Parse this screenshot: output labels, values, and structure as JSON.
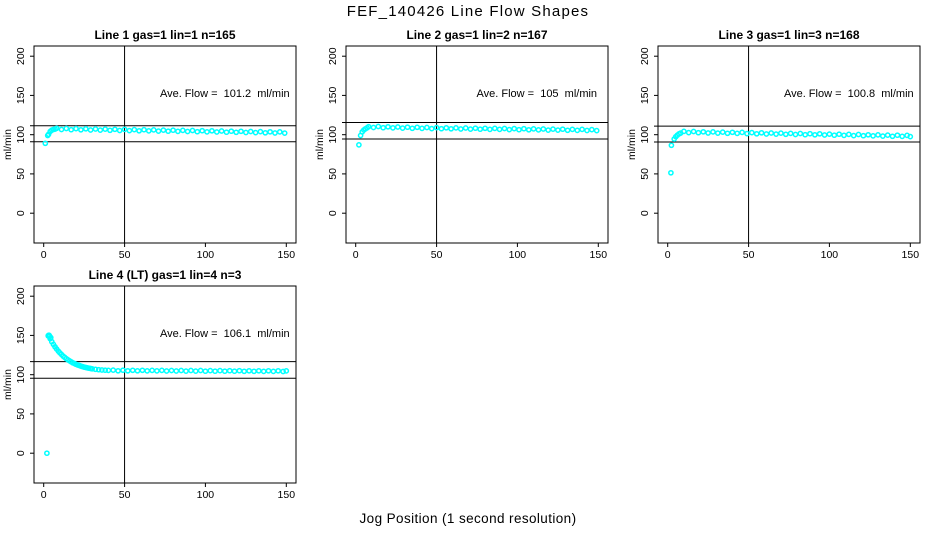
{
  "title": "FEF_140426  Line Flow Shapes",
  "xlabel": "Jog Position (1 second resolution)",
  "point_color": "#00FFFF",
  "axis_color": "#000000",
  "background_color": "#FFFFFF",
  "chart_data": [
    {
      "type": "scatter",
      "title": "Line 1 gas=1 lin=1 n=165",
      "gas": 1,
      "lin": 1,
      "n": 165,
      "ave_flow_ml_min": 101.2,
      "annotation": {
        "text": "Ave. Flow =  101.2  ml/min",
        "x": 112,
        "y": 148
      },
      "ylabel": "ml/min",
      "x_range": [
        -6,
        156
      ],
      "y_range": [
        -38,
        213
      ],
      "x_ticks": [
        0,
        50,
        100,
        150
      ],
      "y_ticks": [
        0,
        50,
        100,
        150,
        200
      ],
      "vline_x": 50,
      "hlines_y": [
        111.3,
        91.1
      ],
      "outliers": [
        [
          1,
          89
        ]
      ],
      "points": [
        [
          2.5,
          99
        ],
        [
          3,
          100.5
        ],
        [
          4,
          104
        ],
        [
          5,
          105.8
        ],
        [
          6,
          106.6
        ],
        [
          7,
          107.1
        ],
        [
          8,
          108.1
        ],
        [
          11,
          106.6
        ],
        [
          14,
          107.9
        ],
        [
          17,
          106.4
        ],
        [
          20,
          107.7
        ],
        [
          23,
          106.2
        ],
        [
          26,
          107.5
        ],
        [
          29,
          106
        ],
        [
          32,
          107.3
        ],
        [
          35,
          105.8
        ],
        [
          38,
          107.1
        ],
        [
          41,
          105.6
        ],
        [
          44,
          106.9
        ],
        [
          47,
          105.4
        ],
        [
          50,
          106.7
        ],
        [
          53,
          105.2
        ],
        [
          56,
          106.5
        ],
        [
          59,
          105
        ],
        [
          62,
          106.3
        ],
        [
          65,
          104.8
        ],
        [
          68,
          106.1
        ],
        [
          71,
          104.6
        ],
        [
          74,
          105.9
        ],
        [
          77,
          104.4
        ],
        [
          80,
          105.7
        ],
        [
          83,
          104.2
        ],
        [
          86,
          105.5
        ],
        [
          89,
          104
        ],
        [
          92,
          105.3
        ],
        [
          95,
          103.8
        ],
        [
          98,
          105.1
        ],
        [
          101,
          103.6
        ],
        [
          104,
          104.9
        ],
        [
          107,
          103.4
        ],
        [
          110,
          104.7
        ],
        [
          113,
          103.2
        ],
        [
          116,
          104.5
        ],
        [
          119,
          103
        ],
        [
          122,
          104.3
        ],
        [
          125,
          102.8
        ],
        [
          128,
          104.1
        ],
        [
          131,
          102.6
        ],
        [
          134,
          103.9
        ],
        [
          137,
          102.4
        ],
        [
          140,
          103.7
        ],
        [
          143,
          102.2
        ],
        [
          146,
          103.5
        ],
        [
          149,
          102
        ]
      ]
    },
    {
      "type": "scatter",
      "title": "Line 2 gas=1 lin=2 n=167",
      "gas": 1,
      "lin": 2,
      "n": 167,
      "ave_flow_ml_min": 105,
      "annotation": {
        "text": "Ave. Flow =  105  ml/min",
        "x": 112,
        "y": 148
      },
      "ylabel": "ml/min",
      "x_range": [
        -6,
        156
      ],
      "y_range": [
        -38,
        213
      ],
      "x_ticks": [
        0,
        50,
        100,
        150
      ],
      "y_ticks": [
        0,
        50,
        100,
        150,
        200
      ],
      "vline_x": 50,
      "hlines_y": [
        115.5,
        94.5
      ],
      "outliers": [
        [
          2,
          87
        ]
      ],
      "points": [
        [
          3,
          99
        ],
        [
          4,
          103.5
        ],
        [
          5,
          106
        ],
        [
          6,
          107.5
        ],
        [
          7,
          108.6
        ],
        [
          8,
          110.2
        ],
        [
          11,
          109.1
        ],
        [
          14,
          110.4
        ],
        [
          17,
          108.9
        ],
        [
          20,
          110.1
        ],
        [
          23,
          108.6
        ],
        [
          26,
          109.8
        ],
        [
          29,
          108.4
        ],
        [
          32,
          109.6
        ],
        [
          35,
          108.2
        ],
        [
          38,
          109.4
        ],
        [
          41,
          108
        ],
        [
          44,
          109.2
        ],
        [
          47,
          107.8
        ],
        [
          50,
          109
        ],
        [
          53,
          107.6
        ],
        [
          56,
          108.8
        ],
        [
          59,
          107.5
        ],
        [
          62,
          108.7
        ],
        [
          65,
          107.3
        ],
        [
          68,
          108.5
        ],
        [
          71,
          107.1
        ],
        [
          74,
          108.3
        ],
        [
          77,
          107
        ],
        [
          80,
          108.2
        ],
        [
          83,
          106.8
        ],
        [
          86,
          108
        ],
        [
          89,
          106.7
        ],
        [
          92,
          107.9
        ],
        [
          95,
          106.5
        ],
        [
          98,
          107.7
        ],
        [
          101,
          106.4
        ],
        [
          104,
          107.6
        ],
        [
          107,
          106.2
        ],
        [
          110,
          107.4
        ],
        [
          113,
          106.1
        ],
        [
          116,
          107.3
        ],
        [
          119,
          105.9
        ],
        [
          122,
          107.1
        ],
        [
          125,
          105.8
        ],
        [
          128,
          107
        ],
        [
          131,
          105.6
        ],
        [
          134,
          106.8
        ],
        [
          137,
          105.5
        ],
        [
          140,
          106.7
        ],
        [
          143,
          105.3
        ],
        [
          146,
          106.5
        ],
        [
          149,
          105.2
        ]
      ]
    },
    {
      "type": "scatter",
      "title": "Line 3 gas=1 lin=3 n=168",
      "gas": 1,
      "lin": 3,
      "n": 168,
      "ave_flow_ml_min": 100.8,
      "annotation": {
        "text": "Ave. Flow =  100.8  ml/min",
        "x": 112,
        "y": 148
      },
      "ylabel": "ml/min",
      "x_range": [
        -6,
        156
      ],
      "y_range": [
        -38,
        213
      ],
      "x_ticks": [
        0,
        50,
        100,
        150
      ],
      "y_ticks": [
        0,
        50,
        100,
        150,
        200
      ],
      "vline_x": 50,
      "hlines_y": [
        110.9,
        90.7
      ],
      "outliers": [
        [
          2,
          51.5
        ],
        [
          2.3,
          86.5
        ]
      ],
      "points": [
        [
          4,
          94.5
        ],
        [
          5,
          97.5
        ],
        [
          6,
          99.5
        ],
        [
          7,
          101
        ],
        [
          8,
          102
        ],
        [
          10,
          104.2
        ],
        [
          13,
          102.7
        ],
        [
          16,
          104
        ],
        [
          19,
          102.5
        ],
        [
          22,
          103.7
        ],
        [
          25,
          102.2
        ],
        [
          28,
          103.5
        ],
        [
          31,
          102
        ],
        [
          34,
          103.3
        ],
        [
          37,
          101.8
        ],
        [
          40,
          103.1
        ],
        [
          43,
          101.6
        ],
        [
          46,
          102.9
        ],
        [
          49,
          101.4
        ],
        [
          52,
          102.6
        ],
        [
          55,
          101.1
        ],
        [
          58,
          102.4
        ],
        [
          61,
          100.9
        ],
        [
          64,
          102.2
        ],
        [
          67,
          100.7
        ],
        [
          70,
          102
        ],
        [
          73,
          100.5
        ],
        [
          76,
          101.7
        ],
        [
          79,
          100.2
        ],
        [
          82,
          101.5
        ],
        [
          85,
          100
        ],
        [
          88,
          101.3
        ],
        [
          91,
          99.8
        ],
        [
          94,
          101.1
        ],
        [
          97,
          99.6
        ],
        [
          100,
          100.8
        ],
        [
          103,
          99.3
        ],
        [
          106,
          100.6
        ],
        [
          109,
          99.1
        ],
        [
          112,
          100.4
        ],
        [
          115,
          98.9
        ],
        [
          118,
          100.2
        ],
        [
          121,
          98.7
        ],
        [
          124,
          99.9
        ],
        [
          127,
          98.4
        ],
        [
          130,
          99.7
        ],
        [
          133,
          98.2
        ],
        [
          136,
          99.5
        ],
        [
          139,
          98
        ],
        [
          142,
          99.3
        ],
        [
          145,
          97.8
        ],
        [
          148,
          99.1
        ],
        [
          150,
          97.6
        ]
      ]
    },
    {
      "type": "scatter",
      "title": "Line 4 (LT) gas=1 lin=4 n=3",
      "gas": 1,
      "lin": 4,
      "n": 3,
      "ave_flow_ml_min": 106.1,
      "annotation": {
        "text": "Ave. Flow =  106.1  ml/min",
        "x": 112,
        "y": 148
      },
      "ylabel": "ml/min",
      "x_range": [
        -6,
        156
      ],
      "y_range": [
        -38,
        213
      ],
      "x_ticks": [
        0,
        50,
        100,
        150
      ],
      "y_ticks": [
        0,
        50,
        100,
        150,
        200
      ],
      "vline_x": 50,
      "hlines_y": [
        116.7,
        95.5
      ],
      "outliers": [
        [
          2,
          0
        ]
      ],
      "points": [
        [
          2.8,
          149.5
        ],
        [
          3,
          150
        ],
        [
          3.3,
          150.3
        ],
        [
          3.7,
          148.9
        ],
        [
          4,
          145.8
        ],
        [
          4.4,
          147.2
        ],
        [
          5,
          142
        ],
        [
          6,
          138.6
        ],
        [
          7,
          135.5
        ],
        [
          8,
          132.7
        ],
        [
          9,
          130.1
        ],
        [
          10,
          127.8
        ],
        [
          11,
          125.7
        ],
        [
          12,
          123.7
        ],
        [
          13,
          122
        ],
        [
          14,
          120.4
        ],
        [
          15,
          118.9
        ],
        [
          16,
          117.6
        ],
        [
          17,
          116.4
        ],
        [
          18,
          115.2
        ],
        [
          19,
          114.2
        ],
        [
          20,
          113.3
        ],
        [
          21,
          112.4
        ],
        [
          22,
          111.7
        ],
        [
          23,
          111
        ],
        [
          24,
          110.3
        ],
        [
          25,
          109.7
        ],
        [
          26,
          109.2
        ],
        [
          27,
          108.7
        ],
        [
          28,
          108.3
        ],
        [
          29,
          107.9
        ],
        [
          30,
          107.5
        ],
        [
          32,
          106.9
        ],
        [
          34,
          106.4
        ],
        [
          36,
          106
        ],
        [
          38,
          105.7
        ],
        [
          40,
          105.5
        ],
        [
          43,
          105.8
        ],
        [
          46,
          105
        ],
        [
          49,
          105.7
        ],
        [
          52,
          104.9
        ],
        [
          55,
          105.6
        ],
        [
          58,
          104.9
        ],
        [
          61,
          105.6
        ],
        [
          64,
          104.8
        ],
        [
          67,
          105.5
        ],
        [
          70,
          104.8
        ],
        [
          73,
          105.5
        ],
        [
          76,
          104.7
        ],
        [
          79,
          105.4
        ],
        [
          82,
          104.7
        ],
        [
          85,
          105.4
        ],
        [
          88,
          104.6
        ],
        [
          91,
          105.3
        ],
        [
          94,
          104.6
        ],
        [
          97,
          105.3
        ],
        [
          100,
          104.5
        ],
        [
          103,
          105.2
        ],
        [
          106,
          104.5
        ],
        [
          109,
          105.2
        ],
        [
          112,
          104.4
        ],
        [
          115,
          105.1
        ],
        [
          118,
          104.4
        ],
        [
          121,
          105.1
        ],
        [
          124,
          104.3
        ],
        [
          127,
          105
        ],
        [
          130,
          104.3
        ],
        [
          133,
          105
        ],
        [
          136,
          104.2
        ],
        [
          139,
          104.9
        ],
        [
          142,
          104.2
        ],
        [
          145,
          104.9
        ],
        [
          148,
          104.1
        ],
        [
          150,
          104.8
        ]
      ]
    }
  ]
}
